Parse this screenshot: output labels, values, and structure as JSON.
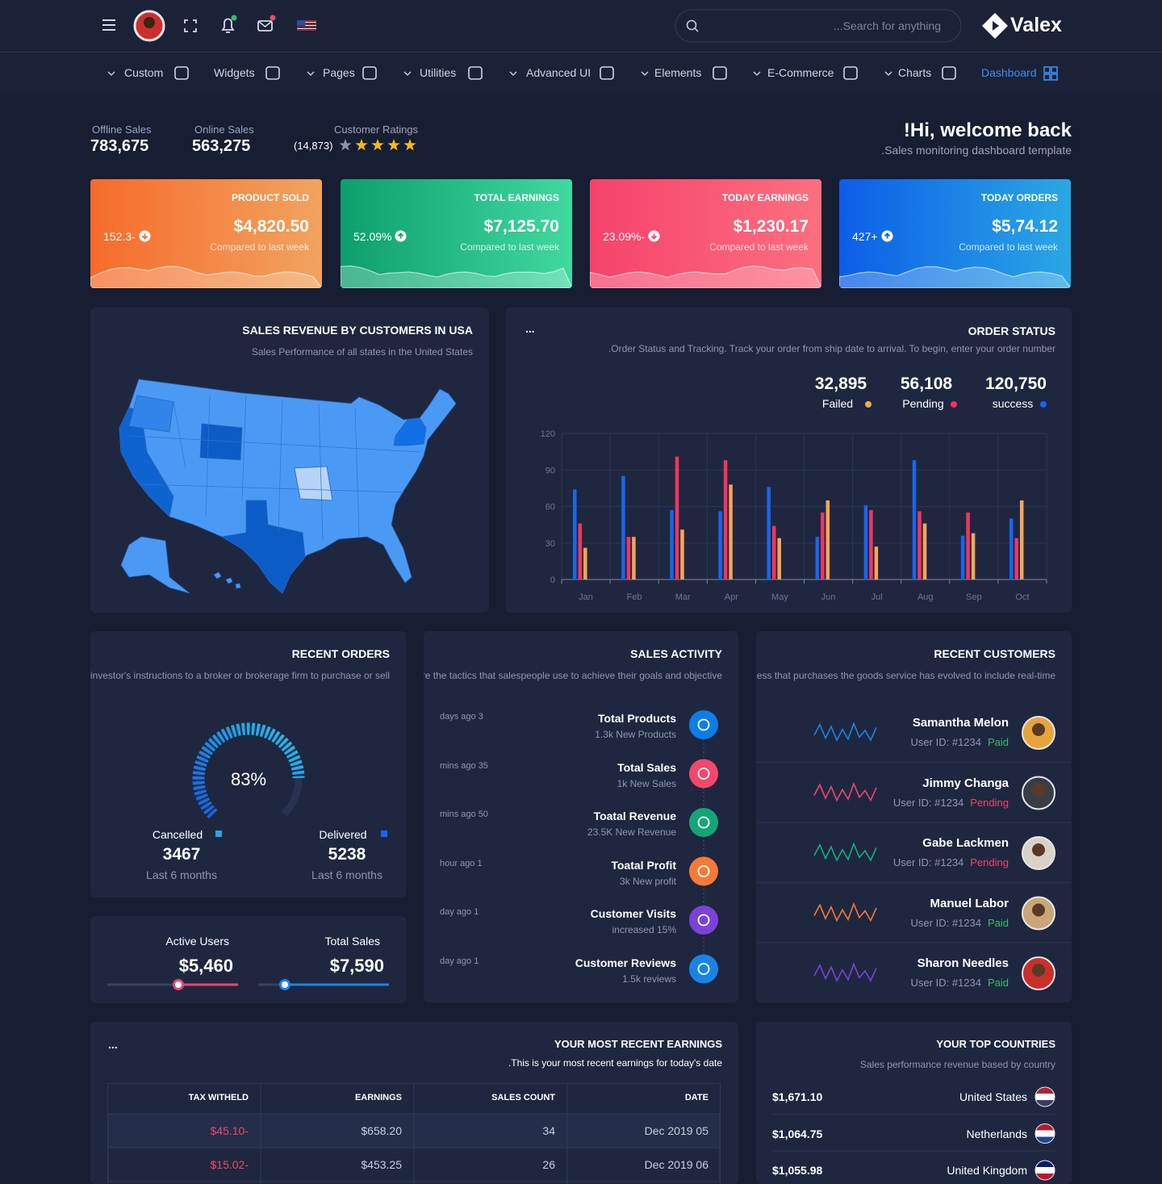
{
  "topbar": {
    "search_placeholder": "...Search for anything",
    "brand": "Valex"
  },
  "menu": [
    "Custom",
    "Widgets",
    "Pages",
    "Utilities",
    "Advanced UI",
    "Elements",
    "E-Commerce",
    "Charts",
    "Dashboard"
  ],
  "summary": {
    "offline": {
      "label": "Offline Sales",
      "value": "783,675"
    },
    "online": {
      "label": "Online Sales",
      "value": "563,275"
    },
    "ratings": {
      "label": "Customer Ratings",
      "count": "(14,873)",
      "stars": 4
    }
  },
  "welcome": {
    "title": "!Hi, welcome back",
    "subtitle": ".Sales monitoring dashboard template"
  },
  "cards": [
    {
      "title": "PRODUCT SOLD",
      "amount": "$4,820.50",
      "note": "Compared to last week",
      "change": "152.3-"
    },
    {
      "title": "TOTAL EARNINGS",
      "amount": "$7,125.70",
      "note": "Compared to last week",
      "change": "52.09%"
    },
    {
      "title": "TODAY EARNINGS",
      "amount": "$1,230.17",
      "note": "Compared to last week",
      "change": "23.09%-"
    },
    {
      "title": "TODAY ORDERS",
      "amount": "$5,74.12",
      "note": "Compared to last week",
      "change": "427+"
    }
  ],
  "map": {
    "title": "SALES REVENUE BY CUSTOMERS IN USA",
    "subtitle": "Sales Performance of all states in the United States"
  },
  "order_status": {
    "menu": "...",
    "title": "ORDER STATUS",
    "subtitle": ".Order Status and Tracking. Track your order from ship date to arrival. To begin, enter your order number",
    "totals": [
      "120,750",
      "56,108",
      "32,895"
    ]
  },
  "chart_data": {
    "type": "bar",
    "categories": [
      "Jan",
      "Feb",
      "Mar",
      "Apr",
      "May",
      "Jun",
      "Jul",
      "Aug",
      "Sep",
      "Oct"
    ],
    "series": [
      {
        "name": "success",
        "color": "#1766ee",
        "values": [
          74,
          85,
          57,
          56,
          76,
          35,
          61,
          98,
          36,
          50
        ]
      },
      {
        "name": "Pending",
        "color": "#f2345e",
        "values": [
          46,
          35,
          101,
          98,
          44,
          55,
          57,
          56,
          55,
          34
        ]
      },
      {
        "name": "Failed",
        "color": "#f4a65a",
        "values": [
          26,
          35,
          41,
          78,
          34,
          65,
          27,
          46,
          38,
          65
        ]
      }
    ],
    "ylim": [
      0,
      120
    ],
    "yticks": [
      0,
      30,
      60,
      90,
      120
    ],
    "grid": true
  },
  "recent_orders": {
    "title": "RECENT ORDERS",
    "subtitle": "An order is an investor's instructions to a broker or brokerage firm to purchase or sell",
    "gauge": {
      "value": 83,
      "label": "83%"
    },
    "stats": [
      {
        "label": "Cancelled",
        "value": "3467",
        "note": "Last 6 months",
        "color": "#21a8d8"
      },
      {
        "label": "Delivered",
        "value": "5238",
        "note": "Last 6 months",
        "color": "#1766ee"
      }
    ]
  },
  "users": [
    {
      "label": "Active Users",
      "value": "$5,460",
      "color": "#f0466a"
    },
    {
      "label": "Total Sales",
      "value": "$7,590",
      "color": "#1a84e6"
    }
  ],
  "sales_activity": {
    "title": "SALES ACTIVITY",
    "subtitle": "Sales activities are the tactics that salespeople use to achieve their goals and objective",
    "items": [
      {
        "time": "days ago 3",
        "title": "Total Products",
        "note": "1.3k New Products",
        "color": "#0d7de8"
      },
      {
        "time": "mins ago 35",
        "title": "Total Sales",
        "note": "1k New Sales",
        "color": "#f3476b"
      },
      {
        "time": "mins ago 50",
        "title": "Toatal Revenue",
        "note": "23.5K New Revenue",
        "color": "#14a676"
      },
      {
        "time": "hour ago 1",
        "title": "Toatal Profit",
        "note": "3k New profit",
        "color": "#f57a37"
      },
      {
        "time": "day ago 1",
        "title": "Customer Visits",
        "note": "increased 15%",
        "color": "#7b42d8"
      },
      {
        "time": "day ago 1",
        "title": "Customer Reviews",
        "note": "1.5k reviews",
        "color": "#1a84e6"
      }
    ]
  },
  "customers": {
    "title": "RECENT CUSTOMERS",
    "subtitle": "A customer is an individual or business that purchases the goods service has evolved to include real-time",
    "rows": [
      {
        "name": "Samantha Melon",
        "id": "User ID: #1234",
        "status": "Paid",
        "status_color": "#2fbf71",
        "color": "#1a84e6"
      },
      {
        "name": "Jimmy Changa",
        "id": "User ID: #1234",
        "status": "Pending",
        "status_color": "#f0466a",
        "color": "#f0466a"
      },
      {
        "name": "Gabe Lackmen",
        "id": "User ID: #1234",
        "status": "Pending",
        "status_color": "#f0466a",
        "color": "#14b07e"
      },
      {
        "name": "Manuel Labor",
        "id": "User ID: #1234",
        "status": "Paid",
        "status_color": "#2fbf71",
        "color": "#f57a37"
      },
      {
        "name": "Sharon Needles",
        "id": "User ID: #1234",
        "status": "Paid",
        "status_color": "#2fbf71",
        "color": "#7b42d8"
      }
    ]
  },
  "earnings": {
    "menu": "...",
    "title": "YOUR MOST RECENT EARNINGS",
    "subtitle": ".This is your most recent earnings for today's date",
    "columns": [
      "TAX WITHELD",
      "EARNINGS",
      "SALES COUNT",
      "DATE"
    ],
    "rows": [
      [
        "$45.10-",
        "$658.20",
        "34",
        "Dec 2019 05"
      ],
      [
        "$15.02-",
        "$453.25",
        "26",
        "Dec 2019 06"
      ]
    ]
  },
  "countries": {
    "title": "YOUR TOP COUNTRIES",
    "subtitle": "Sales performance revenue based by country",
    "rows": [
      {
        "amount": "$1,671.10",
        "name": "United States"
      },
      {
        "amount": "$1,064.75",
        "name": "Netherlands"
      },
      {
        "amount": "$1,055.98",
        "name": "United Kingdom"
      }
    ]
  }
}
